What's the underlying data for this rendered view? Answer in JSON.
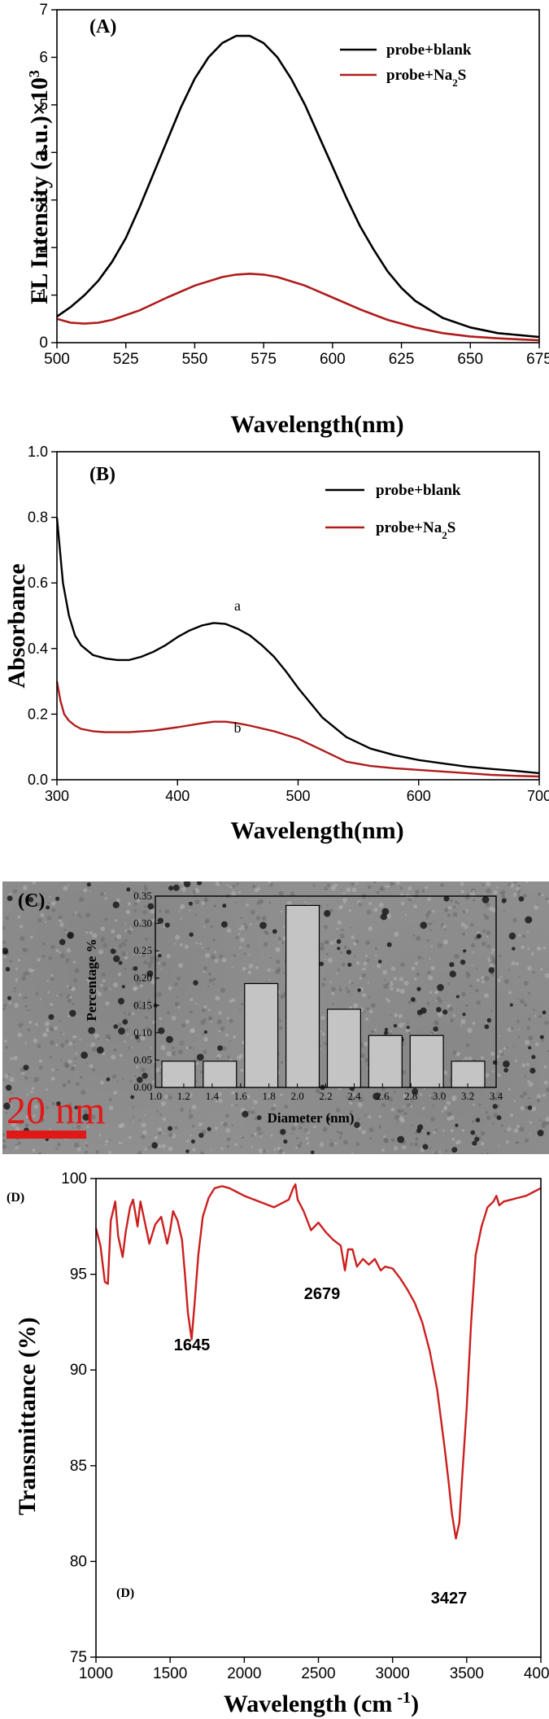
{
  "chart_data": [
    {
      "type": "line",
      "panel": "(A)",
      "xlabel": "Wavelength(nm)",
      "ylabel": "FL Intensity (a.u.)×10",
      "ylabel_sup": "3",
      "xlim": [
        500,
        675
      ],
      "ylim": [
        0,
        7
      ],
      "xticks": [
        500,
        525,
        550,
        575,
        600,
        625,
        650,
        675
      ],
      "yticks": [
        0,
        1,
        2,
        3,
        4,
        5,
        6,
        7
      ],
      "legend_position": "top-right",
      "series": [
        {
          "name": "probe+blank",
          "color": "#000000",
          "x": [
            500,
            505,
            510,
            515,
            520,
            525,
            530,
            535,
            540,
            545,
            550,
            555,
            560,
            565,
            570,
            575,
            580,
            585,
            590,
            595,
            600,
            605,
            610,
            615,
            620,
            625,
            630,
            640,
            650,
            660,
            675
          ],
          "y": [
            0.55,
            0.75,
            1.0,
            1.3,
            1.7,
            2.2,
            2.85,
            3.55,
            4.25,
            4.95,
            5.55,
            6.0,
            6.3,
            6.45,
            6.45,
            6.3,
            6.0,
            5.55,
            5.0,
            4.35,
            3.7,
            3.05,
            2.45,
            1.95,
            1.5,
            1.15,
            0.88,
            0.52,
            0.32,
            0.2,
            0.12
          ]
        },
        {
          "name": "probe+Na",
          "name_sub": "2",
          "name_suffix": "S",
          "color": "#b01c1c",
          "x": [
            500,
            505,
            510,
            515,
            520,
            530,
            540,
            550,
            560,
            565,
            570,
            575,
            580,
            590,
            600,
            610,
            620,
            630,
            640,
            650,
            660,
            675
          ],
          "y": [
            0.5,
            0.42,
            0.4,
            0.42,
            0.48,
            0.68,
            0.95,
            1.2,
            1.38,
            1.43,
            1.45,
            1.43,
            1.38,
            1.2,
            0.95,
            0.7,
            0.48,
            0.32,
            0.2,
            0.13,
            0.09,
            0.05
          ]
        }
      ]
    },
    {
      "type": "line",
      "panel": "(B)",
      "xlabel": "Wavelength(nm)",
      "ylabel": "Absorbance",
      "xlim": [
        300,
        700
      ],
      "ylim": [
        0.0,
        1.0
      ],
      "xticks": [
        300,
        400,
        500,
        600,
        700
      ],
      "yticks": [
        "0.0",
        "0.2",
        "0.4",
        "0.6",
        "0.8",
        "1.0"
      ],
      "legend_position": "top-right",
      "annotations": [
        {
          "text": "a",
          "x": 437,
          "y": 0.5
        },
        {
          "text": "b",
          "x": 437,
          "y": 0.2
        }
      ],
      "series": [
        {
          "name": "probe+blank",
          "color": "#000000",
          "x": [
            300,
            305,
            310,
            315,
            320,
            330,
            340,
            350,
            360,
            370,
            380,
            390,
            400,
            410,
            420,
            430,
            440,
            450,
            460,
            470,
            480,
            490,
            500,
            520,
            540,
            560,
            580,
            600,
            620,
            640,
            660,
            680,
            700
          ],
          "y": [
            0.8,
            0.6,
            0.5,
            0.44,
            0.41,
            0.38,
            0.37,
            0.365,
            0.365,
            0.375,
            0.39,
            0.41,
            0.435,
            0.455,
            0.47,
            0.478,
            0.475,
            0.46,
            0.44,
            0.41,
            0.375,
            0.33,
            0.28,
            0.19,
            0.13,
            0.095,
            0.075,
            0.06,
            0.05,
            0.04,
            0.033,
            0.027,
            0.02
          ]
        },
        {
          "name": "probe+Na",
          "name_sub": "2",
          "name_suffix": "S",
          "color": "#b01c1c",
          "x": [
            300,
            303,
            306,
            310,
            315,
            320,
            330,
            340,
            360,
            380,
            400,
            420,
            430,
            440,
            450,
            460,
            480,
            500,
            520,
            540,
            560,
            580,
            600,
            620,
            640,
            660,
            680,
            700
          ],
          "y": [
            0.3,
            0.24,
            0.2,
            0.18,
            0.165,
            0.155,
            0.148,
            0.145,
            0.145,
            0.15,
            0.16,
            0.172,
            0.177,
            0.177,
            0.172,
            0.165,
            0.148,
            0.125,
            0.09,
            0.055,
            0.042,
            0.035,
            0.03,
            0.025,
            0.02,
            0.015,
            0.012,
            0.01
          ]
        }
      ]
    },
    {
      "type": "bar",
      "panel": "(C)",
      "xlabel": "Diameter (nm)",
      "ylabel": "Percentage %",
      "scale_bar": "20 nm",
      "ylim": [
        0,
        0.35
      ],
      "yticks": [
        "0.00",
        "0.05",
        "0.10",
        "0.15",
        "0.20",
        "0.25",
        "0.30",
        "0.35"
      ],
      "xticks": [
        "1.0",
        "1.2",
        "1.4",
        "1.6",
        "1.8",
        "2.0",
        "2.2",
        "2.4",
        "2.6",
        "2.8",
        "3.0",
        "3.2",
        "3.4"
      ],
      "categories": [
        "1.0-1.2",
        "1.4-1.6",
        "1.8-2.0",
        "2.0-2.2",
        "2.2-2.4",
        "2.6-2.8",
        "3.0-3.2",
        "3.2-3.4"
      ],
      "values": [
        0.048,
        0.048,
        0.19,
        0.333,
        0.143,
        0.095,
        0.095,
        0.048
      ]
    },
    {
      "type": "line",
      "panel": "(D)",
      "panel_label_inner": "(D)",
      "xlabel": "Wavelength (cm",
      "xlabel_sup": "-1",
      "xlabel_end": ")",
      "ylabel": "Transmittance (%)",
      "xlim": [
        1000,
        4000
      ],
      "ylim": [
        75,
        100
      ],
      "xticks": [
        1000,
        1500,
        2000,
        2500,
        3000,
        3500,
        4000
      ],
      "yticks": [
        75,
        80,
        85,
        90,
        95,
        100
      ],
      "peak_labels": [
        {
          "text": "1645",
          "x": 1645,
          "y": 91.6
        },
        {
          "text": "2679",
          "x": 2679,
          "y": 95.2
        },
        {
          "text": "3427",
          "x": 3427,
          "y": 81.2
        }
      ],
      "series": [
        {
          "color": "#cc1f1f",
          "x": [
            1000,
            1030,
            1060,
            1080,
            1100,
            1130,
            1150,
            1180,
            1200,
            1230,
            1250,
            1280,
            1300,
            1330,
            1360,
            1400,
            1440,
            1480,
            1500,
            1520,
            1550,
            1580,
            1600,
            1620,
            1645,
            1665,
            1690,
            1720,
            1760,
            1800,
            1850,
            1900,
            1950,
            2000,
            2100,
            2200,
            2300,
            2330,
            2345,
            2360,
            2400,
            2450,
            2500,
            2550,
            2600,
            2650,
            2679,
            2700,
            2730,
            2760,
            2800,
            2840,
            2880,
            2920,
            2950,
            3000,
            3050,
            3100,
            3150,
            3200,
            3250,
            3300,
            3350,
            3380,
            3400,
            3427,
            3450,
            3470,
            3500,
            3530,
            3560,
            3600,
            3640,
            3680,
            3700,
            3720,
            3750,
            3800,
            3850,
            3900,
            3950,
            4000
          ],
          "y": [
            97.4,
            96.5,
            94.6,
            94.5,
            97.8,
            98.8,
            97.0,
            95.9,
            97.2,
            98.5,
            98.9,
            97.5,
            98.8,
            97.7,
            96.6,
            97.6,
            98.0,
            96.6,
            97.3,
            98.3,
            97.8,
            96.8,
            95.0,
            93.0,
            91.6,
            93.5,
            96.0,
            98.0,
            99.0,
            99.5,
            99.6,
            99.5,
            99.3,
            99.1,
            98.8,
            98.5,
            98.9,
            99.5,
            99.7,
            98.9,
            98.3,
            97.3,
            97.7,
            97.2,
            96.8,
            96.5,
            95.2,
            96.3,
            96.3,
            95.4,
            95.8,
            95.5,
            95.8,
            95.2,
            95.4,
            95.3,
            94.8,
            94.2,
            93.5,
            92.5,
            91.0,
            89.0,
            86.0,
            84.0,
            82.5,
            81.2,
            82.0,
            84.5,
            88.0,
            92.5,
            96.0,
            97.5,
            98.5,
            98.8,
            99.1,
            98.6,
            98.8,
            98.9,
            99.0,
            99.1,
            99.3,
            99.5
          ]
        }
      ]
    }
  ]
}
